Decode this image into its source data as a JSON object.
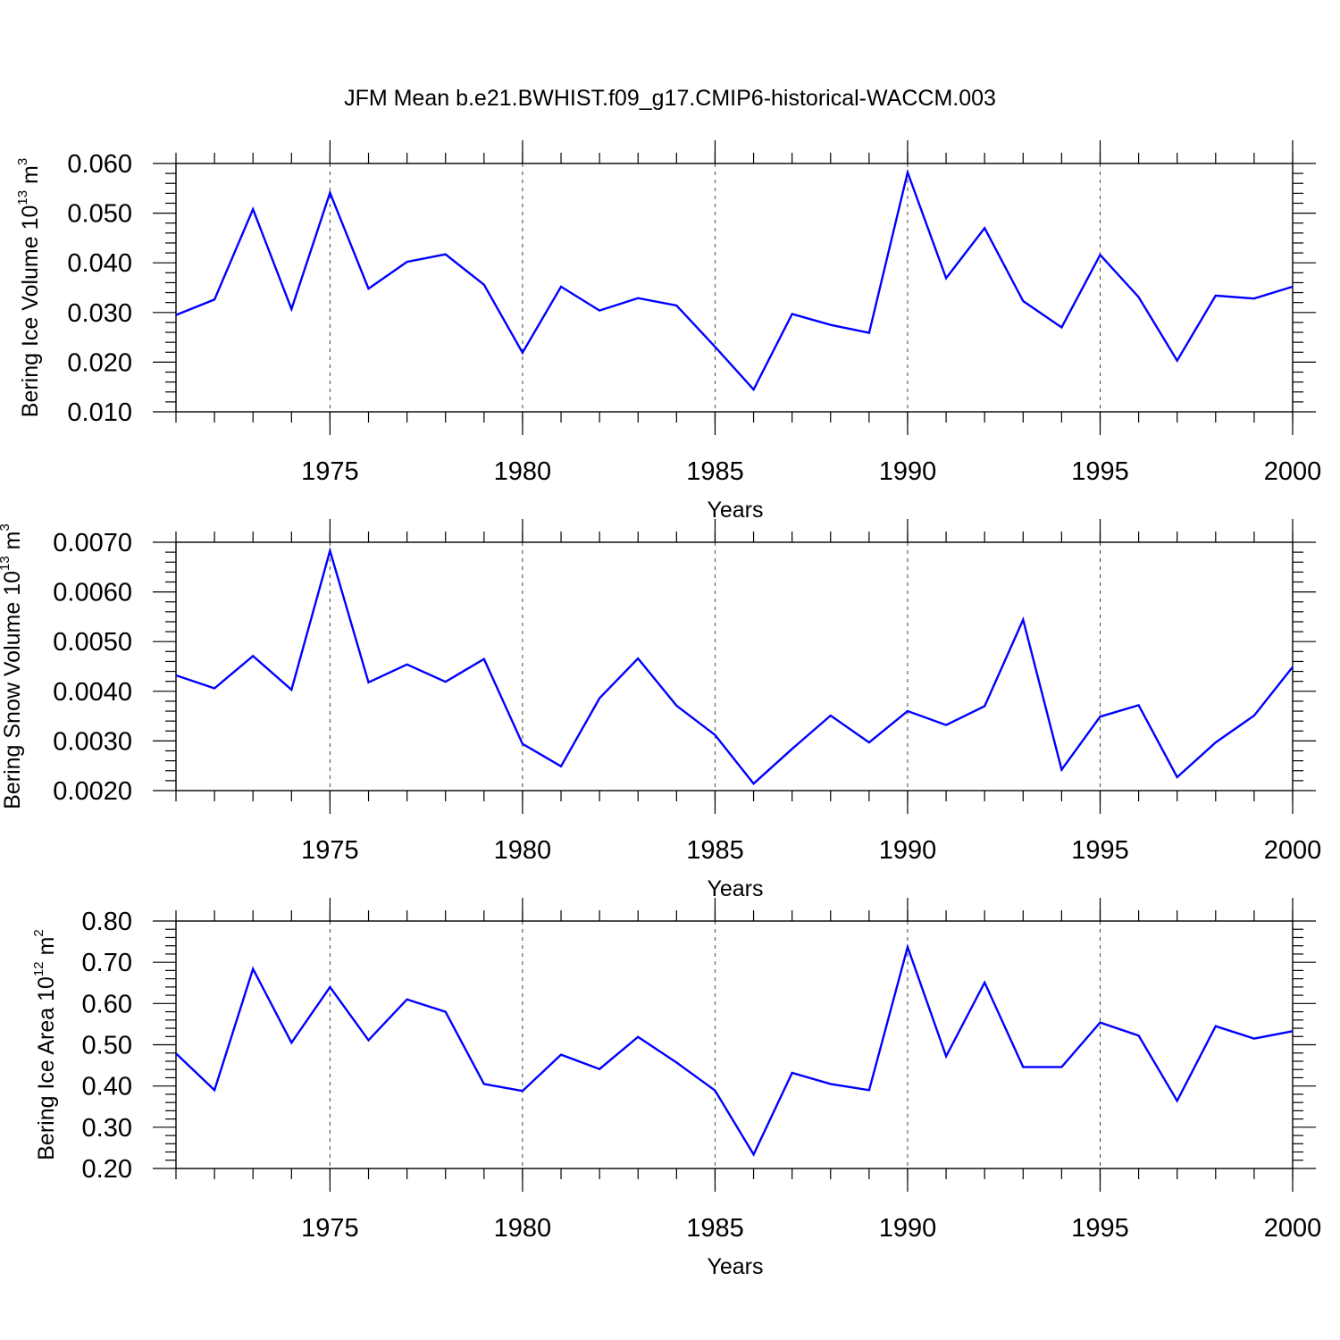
{
  "title": "JFM Mean b.e21.BWHIST.f09_g17.CMIP6-historical-WACCM.003",
  "line_color": "#0000ff",
  "chart_data": [
    {
      "type": "line",
      "xlabel": "Years",
      "ylabel_main": "Bering Ice Volume 10",
      "ylabel_exp": "13",
      "ylabel_unit": " m",
      "ylabel_unit_exp": "3",
      "xlim": [
        1971,
        2000
      ],
      "ylim": [
        0.01,
        0.06
      ],
      "x_ticks": [
        1975,
        1980,
        1985,
        1990,
        1995,
        2000
      ],
      "y_ticks": [
        "0.010",
        "0.020",
        "0.030",
        "0.040",
        "0.050",
        "0.060"
      ],
      "grid": "dashed-vertical",
      "x": [
        1971,
        1972,
        1973,
        1974,
        1975,
        1976,
        1977,
        1978,
        1979,
        1980,
        1981,
        1982,
        1983,
        1984,
        1985,
        1986,
        1987,
        1988,
        1989,
        1990,
        1991,
        1992,
        1993,
        1994,
        1995,
        1996,
        1997,
        1998,
        1999,
        2000
      ],
      "values": [
        0.0295,
        0.0326,
        0.0508,
        0.0307,
        0.0541,
        0.0348,
        0.0402,
        0.0417,
        0.0356,
        0.0219,
        0.0352,
        0.0304,
        0.0329,
        0.0314,
        0.0231,
        0.0145,
        0.0297,
        0.0275,
        0.0259,
        0.0582,
        0.0369,
        0.047,
        0.0323,
        0.027,
        0.0416,
        0.0331,
        0.0203,
        0.0334,
        0.0328,
        0.0352
      ]
    },
    {
      "type": "line",
      "xlabel": "Years",
      "ylabel_main": "Bering Snow Volume 10",
      "ylabel_exp": "13",
      "ylabel_unit": " m",
      "ylabel_unit_exp": "3",
      "xlim": [
        1971,
        2000
      ],
      "ylim": [
        0.002,
        0.007
      ],
      "x_ticks": [
        1975,
        1980,
        1985,
        1990,
        1995,
        2000
      ],
      "y_ticks": [
        "0.0020",
        "0.0030",
        "0.0040",
        "0.0050",
        "0.0060",
        "0.0070"
      ],
      "grid": "dashed-vertical",
      "x": [
        1971,
        1972,
        1973,
        1974,
        1975,
        1976,
        1977,
        1978,
        1979,
        1980,
        1981,
        1982,
        1983,
        1984,
        1985,
        1986,
        1987,
        1988,
        1989,
        1990,
        1991,
        1992,
        1993,
        1994,
        1995,
        1996,
        1997,
        1998,
        1999,
        2000
      ],
      "values": [
        0.00432,
        0.00406,
        0.00471,
        0.00403,
        0.00683,
        0.00418,
        0.00454,
        0.00419,
        0.00465,
        0.00294,
        0.00249,
        0.00386,
        0.00466,
        0.00371,
        0.00312,
        0.00214,
        0.00284,
        0.00351,
        0.00297,
        0.0036,
        0.00332,
        0.0037,
        0.00544,
        0.00242,
        0.00349,
        0.00372,
        0.00227,
        0.00297,
        0.00351,
        0.00449
      ]
    },
    {
      "type": "line",
      "xlabel": "Years",
      "ylabel_main": "Bering Ice Area 10",
      "ylabel_exp": "12",
      "ylabel_unit": " m",
      "ylabel_unit_exp": "2",
      "xlim": [
        1971,
        2000
      ],
      "ylim": [
        0.2,
        0.8
      ],
      "x_ticks": [
        1975,
        1980,
        1985,
        1990,
        1995,
        2000
      ],
      "y_ticks": [
        "0.20",
        "0.30",
        "0.40",
        "0.50",
        "0.60",
        "0.70",
        "0.80"
      ],
      "grid": "dashed-vertical",
      "x": [
        1971,
        1972,
        1973,
        1974,
        1975,
        1976,
        1977,
        1978,
        1979,
        1980,
        1981,
        1982,
        1983,
        1984,
        1985,
        1986,
        1987,
        1988,
        1989,
        1990,
        1991,
        1992,
        1993,
        1994,
        1995,
        1996,
        1997,
        1998,
        1999,
        2000
      ],
      "values": [
        0.479,
        0.39,
        0.684,
        0.505,
        0.64,
        0.511,
        0.61,
        0.58,
        0.405,
        0.388,
        0.476,
        0.441,
        0.519,
        0.457,
        0.389,
        0.234,
        0.432,
        0.405,
        0.39,
        0.737,
        0.472,
        0.651,
        0.446,
        0.446,
        0.554,
        0.522,
        0.364,
        0.545,
        0.515,
        0.533
      ]
    }
  ]
}
